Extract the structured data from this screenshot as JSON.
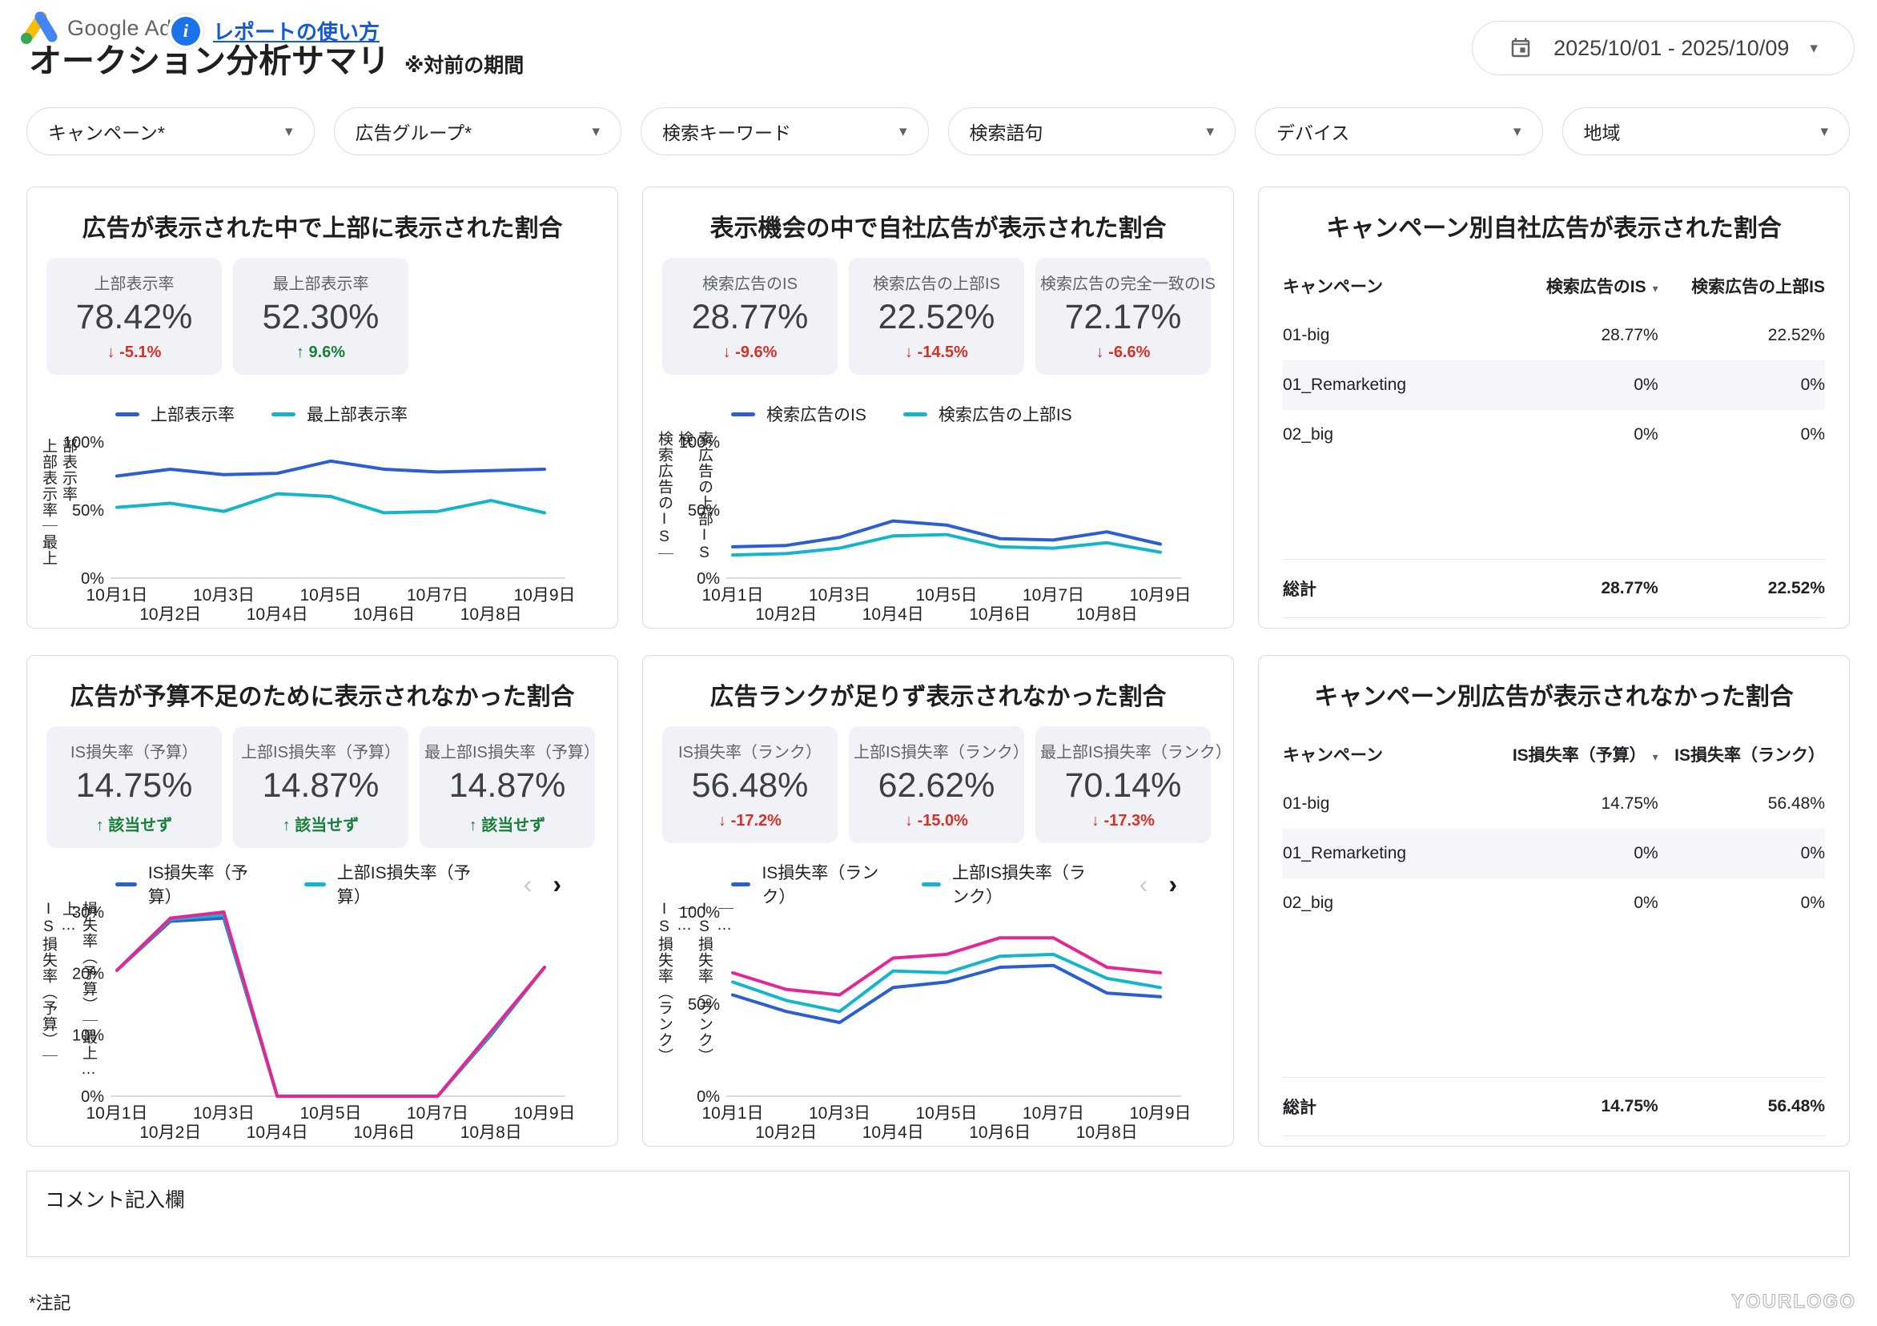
{
  "icons": {
    "caret": "▾",
    "sort_desc": "▾",
    "arrow_down": "↓",
    "arrow_up": "↑",
    "chevron_left": "‹",
    "chevron_right": "›",
    "info": "i"
  },
  "colors": {
    "blue": "#2b5dd3",
    "teal": "#12b5cb",
    "magenta": "#e52592",
    "negative": "#d93025",
    "positive": "#188038"
  },
  "header": {
    "logo_text": "Google Ads",
    "help_link": "レポートの使い方",
    "title": "オークション分析サマリ",
    "subtitle": "※対前の期間",
    "date_range": "2025/10/01 - 2025/10/09"
  },
  "filters": [
    "キャンペーン*",
    "広告グループ*",
    "検索キーワード",
    "検索語句",
    "デバイス",
    "地域"
  ],
  "cards": {
    "top_rate": {
      "title": "広告が表示された中で上部に表示された割合",
      "tiles": [
        {
          "label": "上部表示率",
          "value": "78.42%",
          "delta": "-5.1%",
          "dir": "down"
        },
        {
          "label": "最上部表示率",
          "value": "52.30%",
          "delta": "9.6%",
          "dir": "up"
        }
      ],
      "chart": {
        "type": "line",
        "x": [
          "10月1日",
          "10月2日",
          "10月3日",
          "10月4日",
          "10月5日",
          "10月6日",
          "10月7日",
          "10月8日",
          "10月9日"
        ],
        "y_title_lines": [
          "上部表示率｜最上",
          "部表示率"
        ],
        "ylim": [
          0,
          100
        ],
        "yticks": [
          100,
          50,
          0
        ],
        "series": [
          {
            "name": "上部表示率",
            "color": "#2b5dd3",
            "values": [
              75,
              80,
              76,
              77,
              86,
              80,
              78,
              79,
              80
            ]
          },
          {
            "name": "最上部表示率",
            "color": "#12b5cb",
            "values": [
              52,
              55,
              49,
              62,
              60,
              48,
              49,
              57,
              48
            ]
          }
        ]
      }
    },
    "is_rate": {
      "title": "表示機会の中で自社広告が表示された割合",
      "tiles": [
        {
          "label": "検索広告のIS",
          "value": "28.77%",
          "delta": "-9.6%",
          "dir": "down"
        },
        {
          "label": "検索広告の上部IS",
          "value": "22.52%",
          "delta": "-14.5%",
          "dir": "down"
        },
        {
          "label": "検索広告の完全一致のIS",
          "value": "72.17%",
          "delta": "-6.6%",
          "dir": "down"
        }
      ],
      "chart": {
        "type": "line",
        "x": [
          "10月1日",
          "10月2日",
          "10月3日",
          "10月4日",
          "10月5日",
          "10月6日",
          "10月7日",
          "10月8日",
          "10月9日"
        ],
        "y_title_lines": [
          "検索広告のIS｜検",
          "索広告の上部IS"
        ],
        "ylim": [
          0,
          100
        ],
        "yticks": [
          100,
          50,
          0
        ],
        "series": [
          {
            "name": "検索広告のIS",
            "color": "#2b5dd3",
            "values": [
              23,
              24,
              30,
              42,
              39,
              29,
              28,
              34,
              25
            ]
          },
          {
            "name": "検索広告の上部IS",
            "color": "#12b5cb",
            "values": [
              17,
              18,
              22,
              31,
              32,
              23,
              22,
              26,
              19
            ]
          }
        ]
      }
    },
    "campaign_is_table": {
      "title": "キャンペーン別自社広告が表示された割合",
      "columns": [
        "キャンペーン",
        "検索広告のIS",
        "検索広告の上部IS"
      ],
      "rows": [
        [
          "01-big",
          "28.77%",
          "22.52%"
        ],
        [
          "01_Remarketing",
          "0%",
          "0%"
        ],
        [
          "02_big",
          "0%",
          "0%"
        ]
      ],
      "total_label": "総計",
      "total": [
        "28.77%",
        "22.52%"
      ]
    },
    "budget_lost": {
      "title": "広告が予算不足のために表示されなかった割合",
      "tiles": [
        {
          "label": "IS損失率（予算）",
          "value": "14.75%",
          "delta": "該当せず",
          "dir": "up"
        },
        {
          "label": "上部IS損失率（予算）",
          "value": "14.87%",
          "delta": "該当せず",
          "dir": "up"
        },
        {
          "label": "最上部IS損失率（予算）",
          "value": "14.87%",
          "delta": "該当せず",
          "dir": "up"
        }
      ],
      "chart": {
        "type": "line",
        "x": [
          "10月1日",
          "10月2日",
          "10月3日",
          "10月4日",
          "10月5日",
          "10月6日",
          "10月7日",
          "10月8日",
          "10月9日"
        ],
        "y_title_lines": [
          "IS損失率（予算）｜上…",
          "損失率（予算）｜最上…"
        ],
        "ylim": [
          0,
          30
        ],
        "yticks": [
          30,
          20,
          10,
          0
        ],
        "legend_visible": 2,
        "pagination": true,
        "series": [
          {
            "name": "IS損失率（予算）",
            "color": "#2b5dd3",
            "values": [
              20.5,
              28.5,
              29,
              0,
              0,
              0,
              0,
              10,
              21
            ]
          },
          {
            "name": "上部IS損失率（予算）",
            "color": "#12b5cb",
            "values": [
              20.5,
              28.8,
              29.5,
              0,
              0,
              0,
              0,
              10.2,
              21
            ]
          },
          {
            "name": "最上部IS損失率（予算）",
            "color": "#e52592",
            "values": [
              20.5,
              29,
              30,
              0,
              0,
              0,
              0,
              10.5,
              21
            ]
          }
        ]
      }
    },
    "rank_lost": {
      "title": "広告ランクが足りず表示されなかった割合",
      "tiles": [
        {
          "label": "IS損失率（ランク）",
          "value": "56.48%",
          "delta": "-17.2%",
          "dir": "down"
        },
        {
          "label": "上部IS損失率（ランク）",
          "value": "62.62%",
          "delta": "-15.0%",
          "dir": "down"
        },
        {
          "label": "最上部IS損失率（ランク）",
          "value": "70.14%",
          "delta": "-17.3%",
          "dir": "down"
        }
      ],
      "chart": {
        "type": "line",
        "x": [
          "10月1日",
          "10月2日",
          "10月3日",
          "10月4日",
          "10月5日",
          "10月6日",
          "10月7日",
          "10月8日",
          "10月9日"
        ],
        "y_title_lines": [
          "IS損失率（ランク）｜…",
          "IS損失率（ランク）｜…"
        ],
        "ylim": [
          0,
          100
        ],
        "yticks": [
          100,
          50,
          0
        ],
        "legend_visible": 2,
        "pagination": true,
        "series": [
          {
            "name": "IS損失率（ランク）",
            "color": "#2b5dd3",
            "values": [
              55,
              46,
              40,
              59,
              62,
              70,
              71,
              56,
              54
            ]
          },
          {
            "name": "上部IS損失率（ランク）",
            "color": "#12b5cb",
            "values": [
              62,
              52,
              46,
              68,
              67,
              76,
              77,
              64,
              59
            ]
          },
          {
            "name": "最上部IS損失率（ランク）",
            "color": "#e52592",
            "values": [
              67,
              58,
              55,
              75,
              77,
              86,
              86,
              70,
              67
            ]
          }
        ]
      }
    },
    "campaign_lost_table": {
      "title": "キャンペーン別広告が表示されなかった割合",
      "columns": [
        "キャンペーン",
        "IS損失率（予算）",
        "IS損失率（ランク）"
      ],
      "rows": [
        [
          "01-big",
          "14.75%",
          "56.48%"
        ],
        [
          "01_Remarketing",
          "0%",
          "0%"
        ],
        [
          "02_big",
          "0%",
          "0%"
        ]
      ],
      "total_label": "総計",
      "total": [
        "14.75%",
        "56.48%"
      ]
    }
  },
  "comment_box": {
    "label": "コメント記入欄"
  },
  "footnote": "*注記",
  "watermark": "YOURLOGO"
}
